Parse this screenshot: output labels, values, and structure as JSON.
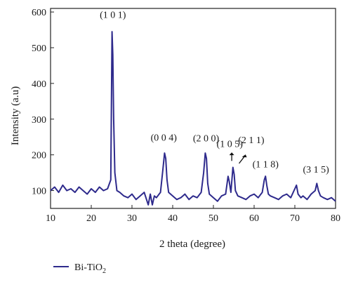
{
  "chart_data": {
    "type": "line",
    "xlabel": "2 theta (degree)",
    "ylabel": "Intensity (a.u)",
    "xlim": [
      10,
      80
    ],
    "ylim": [
      50,
      610
    ],
    "x_ticks": [
      10,
      20,
      30,
      40,
      50,
      60,
      70,
      80
    ],
    "y_ticks": [
      100,
      200,
      300,
      400,
      500,
      600
    ],
    "grid": false,
    "legend_position": "bottom-left",
    "color": "#2e2a8c",
    "series": [
      {
        "name": "Bi-TiO2",
        "legend_main": "Bi-TiO",
        "legend_sub": "2",
        "x": [
          10.0,
          11.0,
          12.0,
          13.0,
          14.0,
          15.0,
          16.0,
          17.0,
          18.0,
          19.0,
          20.0,
          21.0,
          22.0,
          23.0,
          24.0,
          24.8,
          25.1,
          25.3,
          25.5,
          25.8,
          26.3,
          27.0,
          28.0,
          29.0,
          30.0,
          31.0,
          32.0,
          33.0,
          34.0,
          34.5,
          35.0,
          35.5,
          36.0,
          37.0,
          37.6,
          38.0,
          38.3,
          38.6,
          39.0,
          40.0,
          41.0,
          42.0,
          43.0,
          44.0,
          45.0,
          46.0,
          47.0,
          47.6,
          48.0,
          48.3,
          48.6,
          49.0,
          50.0,
          51.0,
          52.0,
          53.0,
          53.6,
          53.9,
          54.3,
          54.8,
          55.1,
          55.4,
          56.0,
          57.0,
          58.0,
          59.0,
          60.0,
          61.0,
          62.0,
          62.5,
          62.8,
          63.1,
          63.5,
          64.0,
          65.0,
          66.0,
          67.0,
          68.0,
          69.0,
          70.0,
          70.4,
          70.8,
          71.5,
          72.0,
          73.0,
          74.0,
          75.0,
          75.4,
          75.8,
          76.3,
          77.0,
          78.0,
          79.0,
          80.0
        ],
        "values": [
          100,
          110,
          95,
          115,
          100,
          105,
          95,
          110,
          100,
          90,
          105,
          95,
          110,
          100,
          105,
          130,
          545,
          480,
          300,
          150,
          100,
          95,
          85,
          80,
          90,
          75,
          85,
          95,
          60,
          90,
          60,
          85,
          80,
          95,
          160,
          205,
          190,
          130,
          95,
          85,
          75,
          80,
          90,
          75,
          85,
          80,
          95,
          150,
          205,
          190,
          120,
          90,
          80,
          70,
          85,
          90,
          140,
          125,
          95,
          165,
          145,
          100,
          85,
          80,
          75,
          85,
          90,
          80,
          95,
          130,
          140,
          115,
          90,
          85,
          80,
          75,
          85,
          90,
          80,
          105,
          115,
          90,
          80,
          85,
          75,
          90,
          100,
          120,
          100,
          85,
          80,
          75,
          80,
          70
        ]
      }
    ],
    "annotations": [
      {
        "text": "(1 0 1)",
        "x": 25.3,
        "y": 583
      },
      {
        "text": "(0 0 4)",
        "x": 37.8,
        "y": 240
      },
      {
        "text": "(2 0 0)",
        "x": 48.2,
        "y": 238
      },
      {
        "text": "(1 0 5)",
        "x": 54.0,
        "y": 222
      },
      {
        "text": "(2 1 1)",
        "x": 59.3,
        "y": 233
      },
      {
        "text": "(1 1 8)",
        "x": 62.8,
        "y": 165
      },
      {
        "text": "(3 1 5)",
        "x": 75.2,
        "y": 150
      }
    ]
  }
}
